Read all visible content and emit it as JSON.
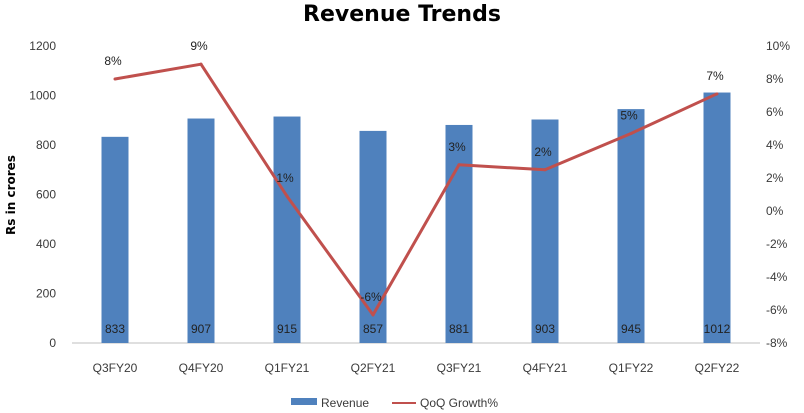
{
  "chart_data": {
    "type": "bar",
    "title": "Revenue Trends",
    "ylabel": "Rs in crores",
    "xlabel": "",
    "categories": [
      "Q3FY20",
      "Q4FY20",
      "Q1FY21",
      "Q2FY21",
      "Q3FY21",
      "Q4FY21",
      "Q1FY22",
      "Q2FY22"
    ],
    "series": [
      {
        "name": "Revenue",
        "type": "bar",
        "axis": "left",
        "color": "#4f81bd",
        "values": [
          833,
          907,
          915,
          857,
          881,
          903,
          945,
          1012
        ],
        "labels": [
          "833",
          "907",
          "915",
          "857",
          "881",
          "903",
          "945",
          "1012"
        ]
      },
      {
        "name": "QoQ Growth%",
        "type": "line",
        "axis": "right",
        "color": "#c0504d",
        "values": [
          8.0,
          8.9,
          0.9,
          -6.3,
          2.8,
          2.5,
          4.7,
          7.1
        ],
        "labels": [
          "8%",
          "9%",
          "1%",
          "-6%",
          "3%",
          "2%",
          "5%",
          "7%"
        ]
      }
    ],
    "ylim_left": [
      0,
      1200
    ],
    "yticks_left": [
      "0",
      "200",
      "400",
      "600",
      "800",
      "1000",
      "1200"
    ],
    "ylim_right": [
      -8,
      10
    ],
    "yticks_right": [
      "-8%",
      "-6%",
      "-4%",
      "-2%",
      "0%",
      "2%",
      "4%",
      "6%",
      "8%",
      "10%"
    ],
    "grid": false,
    "legend": "bottom-center"
  }
}
